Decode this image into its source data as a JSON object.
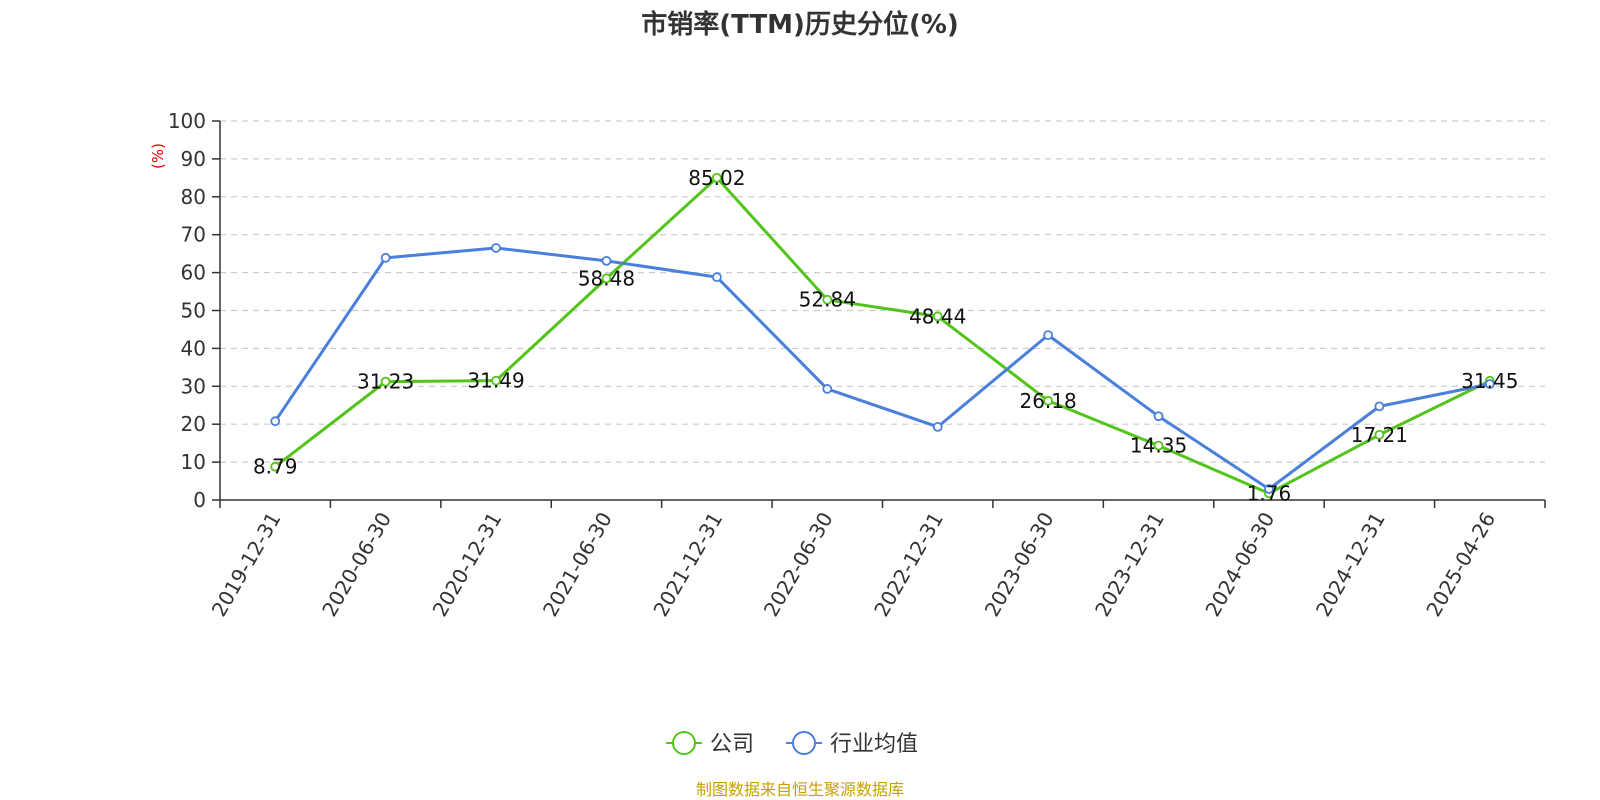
{
  "chart_data": {
    "type": "line",
    "title": "市销率(TTM)历史分位(%)",
    "ylabel": "(%)",
    "xlabel": "",
    "ylim": [
      0,
      100
    ],
    "yticks": [
      0,
      10,
      20,
      30,
      40,
      50,
      60,
      70,
      80,
      90,
      100
    ],
    "grid": "horizontal dashed",
    "legend_position": "bottom-center",
    "categories": [
      "2019-12-31",
      "2020-06-30",
      "2020-12-31",
      "2021-06-30",
      "2021-12-31",
      "2022-06-30",
      "2022-12-31",
      "2023-06-30",
      "2023-12-31",
      "2024-06-30",
      "2024-12-31",
      "2025-04-26"
    ],
    "series": [
      {
        "name": "公司",
        "color": "#52c41a",
        "show_labels": true,
        "values": [
          8.79,
          31.23,
          31.49,
          58.48,
          85.02,
          52.84,
          48.44,
          26.18,
          14.35,
          1.76,
          17.21,
          31.45
        ]
      },
      {
        "name": "行业均值",
        "color": "#4a7fdb",
        "show_labels": false,
        "values": [
          20.8,
          63.9,
          66.5,
          63.1,
          58.8,
          29.3,
          19.3,
          43.5,
          22.1,
          2.9,
          24.7,
          30.6
        ]
      }
    ]
  },
  "colors": {
    "unit_label": "#e00000",
    "axis": "#333333",
    "grid": "#cccccc",
    "source": "#c7a000"
  },
  "source": "制图数据来自恒生聚源数据库"
}
